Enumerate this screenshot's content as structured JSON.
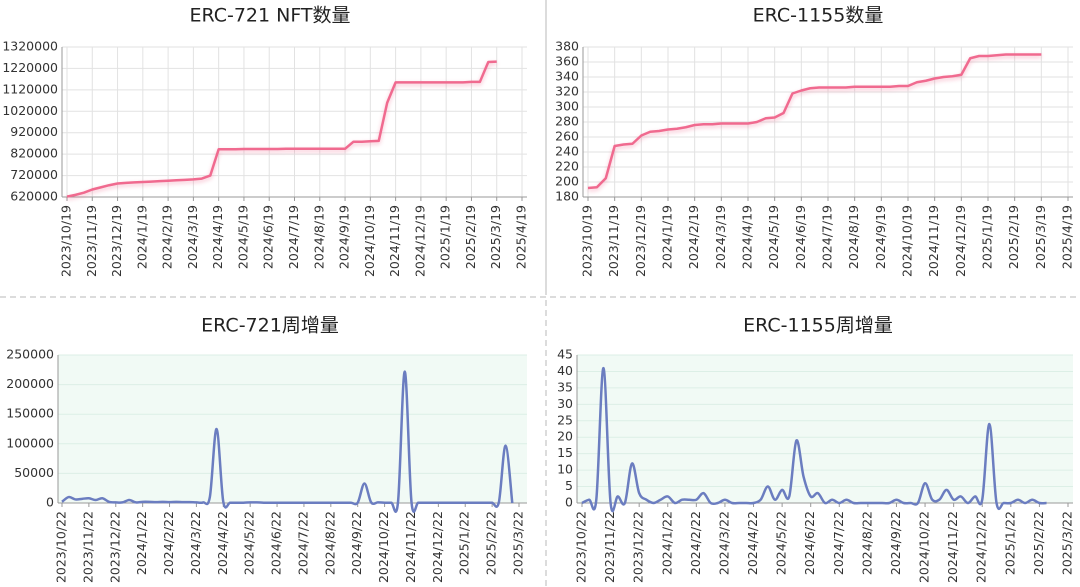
{
  "chart_data": [
    {
      "type": "line",
      "title": "ERC-721 NFT数量",
      "color": "#f06a8f",
      "grid": true,
      "smooth": false,
      "categories": [
        "2023/10/19",
        null,
        null,
        "2023/11/19",
        null,
        null,
        "2023/12/19",
        null,
        null,
        "2024/1/19",
        null,
        null,
        "2024/2/19",
        null,
        null,
        "2024/3/19",
        null,
        null,
        "2024/4/19",
        null,
        null,
        "2024/5/19",
        null,
        null,
        "2024/6/19",
        null,
        null,
        "2024/7/19",
        null,
        null,
        "2024/8/19",
        null,
        null,
        "2024/9/19",
        null,
        null,
        "2024/10/19",
        null,
        null,
        "2024/11/19",
        null,
        null,
        "2024/12/19",
        null,
        null,
        "2025/1/19",
        null,
        null,
        "2025/2/19",
        null,
        null,
        "2025/3/19",
        null,
        null,
        "2025/4/19"
      ],
      "values": [
        622000,
        630000,
        640000,
        655000,
        665000,
        675000,
        683000,
        686000,
        688000,
        690000,
        692000,
        694000,
        696000,
        698000,
        700000,
        702000,
        706000,
        720000,
        843000,
        843000,
        843000,
        844000,
        844000,
        844000,
        844000,
        844000,
        845000,
        845000,
        845000,
        845000,
        845000,
        845000,
        845000,
        845000,
        878000,
        878000,
        880000,
        882000,
        1060000,
        1155000,
        1155000,
        1155000,
        1155000,
        1155000,
        1155000,
        1155000,
        1155000,
        1155000,
        1157000,
        1157000,
        1250000,
        1252000,
        null,
        null,
        null
      ],
      "ylim": [
        620000,
        1320000
      ],
      "yticks": [
        620000,
        720000,
        820000,
        920000,
        1020000,
        1120000,
        1220000,
        1320000
      ]
    },
    {
      "type": "line",
      "title": "ERC-1155数量",
      "color": "#f06a8f",
      "grid": true,
      "smooth": false,
      "categories": [
        "2023/10/19",
        null,
        null,
        "2023/11/19",
        null,
        null,
        "2023/12/19",
        null,
        null,
        "2024/1/19",
        null,
        null,
        "2024/2/19",
        null,
        null,
        "2024/3/19",
        null,
        null,
        "2024/4/19",
        null,
        null,
        "2024/5/19",
        null,
        null,
        "2024/6/19",
        null,
        null,
        "2024/7/19",
        null,
        null,
        "2024/8/19",
        null,
        null,
        "2024/9/19",
        null,
        null,
        "2024/10/19",
        null,
        null,
        "2024/11/19",
        null,
        null,
        "2024/12/19",
        null,
        null,
        "2025/1/19",
        null,
        null,
        "2025/2/19",
        null,
        null,
        "2025/3/19",
        null,
        null,
        "2025/4/19"
      ],
      "values": [
        192,
        193,
        205,
        248,
        250,
        251,
        262,
        267,
        268,
        270,
        271,
        273,
        276,
        277,
        277,
        278,
        278,
        278,
        278,
        280,
        285,
        286,
        292,
        318,
        322,
        325,
        326,
        326,
        326,
        326,
        327,
        327,
        327,
        327,
        327,
        328,
        328,
        333,
        335,
        338,
        340,
        341,
        343,
        365,
        368,
        368,
        369,
        370,
        370,
        370,
        370,
        370,
        null,
        null,
        null
      ],
      "ylim": [
        180,
        380
      ],
      "yticks": [
        180,
        200,
        220,
        240,
        260,
        280,
        300,
        320,
        340,
        360,
        380
      ]
    },
    {
      "type": "line",
      "title": "ERC-721周增量",
      "color": "#6b7dc0",
      "grid": true,
      "smooth": true,
      "categories": [
        "2023/10/22",
        null,
        null,
        null,
        "2023/11/22",
        null,
        null,
        null,
        "2023/12/22",
        null,
        null,
        null,
        "2024/1/22",
        null,
        null,
        null,
        "2024/2/22",
        null,
        null,
        null,
        "2024/3/22",
        null,
        null,
        null,
        "2024/4/22",
        null,
        null,
        null,
        "2024/5/22",
        null,
        null,
        null,
        "2024/6/22",
        null,
        null,
        null,
        "2024/7/22",
        null,
        null,
        null,
        "2024/8/22",
        null,
        null,
        null,
        "2024/9/22",
        null,
        null,
        null,
        "2024/10/22",
        null,
        null,
        null,
        "2024/11/22",
        null,
        null,
        null,
        "2024/12/22",
        null,
        null,
        null,
        "2025/1/22",
        null,
        null,
        null,
        "2025/2/22",
        null,
        null,
        null,
        "2025/3/22"
      ],
      "values": [
        2000,
        10000,
        6000,
        7000,
        8000,
        5000,
        8000,
        2000,
        1000,
        1000,
        5000,
        1000,
        2000,
        2000,
        1500,
        2000,
        1500,
        2000,
        1500,
        1500,
        1000,
        1000,
        10000,
        125000,
        2000,
        500,
        500,
        500,
        1000,
        1000,
        500,
        500,
        500,
        500,
        500,
        500,
        500,
        500,
        500,
        500,
        500,
        500,
        500,
        500,
        500,
        33000,
        1000,
        1000,
        500,
        500,
        2000,
        222000,
        2000,
        500,
        500,
        500,
        500,
        500,
        500,
        500,
        500,
        500,
        500,
        500,
        500,
        1000,
        97000,
        0,
        null
      ],
      "ylim": [
        0,
        250000
      ],
      "yticks": [
        0,
        50000,
        100000,
        150000,
        200000,
        250000
      ]
    },
    {
      "type": "line",
      "title": "ERC-1155周增量",
      "color": "#6b7dc0",
      "grid": true,
      "smooth": true,
      "categories": [
        "2023/10/22",
        null,
        null,
        null,
        "2023/11/22",
        null,
        null,
        null,
        "2023/12/22",
        null,
        null,
        null,
        "2024/1/22",
        null,
        null,
        null,
        "2024/2/22",
        null,
        null,
        null,
        "2024/3/22",
        null,
        null,
        null,
        "2024/4/22",
        null,
        null,
        null,
        "2024/5/22",
        null,
        null,
        null,
        "2024/6/22",
        null,
        null,
        null,
        "2024/7/22",
        null,
        null,
        null,
        "2024/8/22",
        null,
        null,
        null,
        "2024/9/22",
        null,
        null,
        null,
        "2024/10/22",
        null,
        null,
        null,
        "2024/11/22",
        null,
        null,
        null,
        "2024/12/22",
        null,
        null,
        null,
        "2025/1/22",
        null,
        null,
        null,
        "2025/2/22",
        null,
        null,
        null,
        "2025/3/22"
      ],
      "values": [
        0,
        1,
        1,
        41,
        0,
        2,
        0,
        12,
        3,
        1,
        0,
        1,
        2,
        0,
        1,
        1,
        1,
        3,
        0,
        0,
        1,
        0,
        0,
        0,
        0,
        1,
        5,
        1,
        4,
        2,
        19,
        8,
        2,
        3,
        0,
        1,
        0,
        1,
        0,
        0,
        0,
        0,
        0,
        0,
        1,
        0,
        0,
        0,
        6,
        1,
        1,
        4,
        1,
        2,
        0,
        2,
        1,
        24,
        0,
        0,
        0,
        1,
        0,
        1,
        0,
        0,
        null,
        null,
        null
      ],
      "ylim": [
        0,
        45
      ],
      "yticks": [
        0,
        5,
        10,
        15,
        20,
        25,
        30,
        35,
        40,
        45
      ]
    }
  ]
}
